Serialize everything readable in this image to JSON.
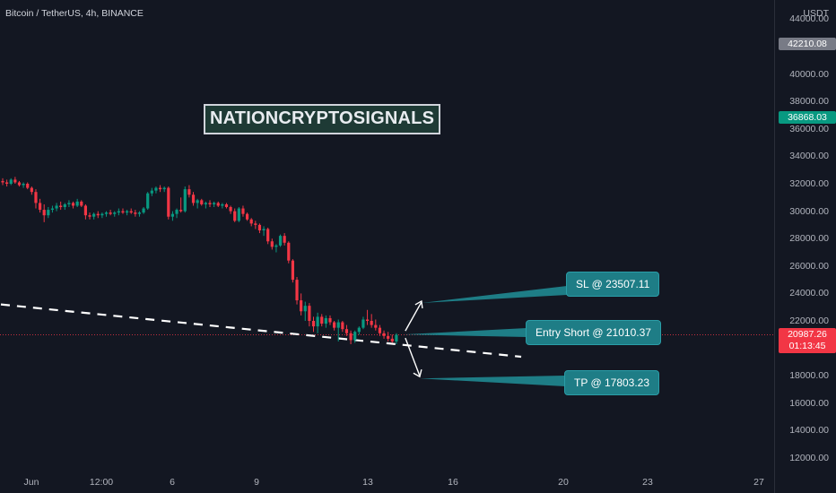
{
  "symbol_info": "Bitcoin / TetherUS, 4h, BINANCE",
  "axis_unit": "USDT",
  "watermark": "NATIONCRYPTOSIGNALS",
  "price_ticks": [
    "44000.00",
    "40000.00",
    "38000.00",
    "36000.00",
    "34000.00",
    "32000.00",
    "30000.00",
    "28000.00",
    "26000.00",
    "24000.00",
    "22000.00",
    "18000.00",
    "16000.00",
    "14000.00",
    "12000.00"
  ],
  "time_ticks": [
    "Jun",
    "12:00",
    "6",
    "9",
    "13",
    "16",
    "20",
    "23",
    "27"
  ],
  "price_tags": {
    "high": {
      "value": "42210.08",
      "color": "#787b86"
    },
    "mid": {
      "value": "36868.03",
      "color": "#089981"
    },
    "current": {
      "value": "20987.26",
      "countdown": "01:13:45",
      "color": "#f23645"
    }
  },
  "callouts": {
    "sl": "SL @ 23507.11",
    "entry": "Entry Short @ 21010.37",
    "tp": "TP @ 17803.23"
  },
  "colors": {
    "up": "#089981",
    "down": "#f23645",
    "callout": "#1e7d86"
  },
  "chart_data": {
    "type": "candlestick",
    "ylim": [
      11000,
      45000
    ],
    "candles": [
      [
        32200,
        32400,
        31900,
        32100
      ],
      [
        32100,
        32300,
        31800,
        32000
      ],
      [
        32000,
        32400,
        31900,
        32300
      ],
      [
        32300,
        32500,
        32000,
        32100
      ],
      [
        32100,
        32200,
        31800,
        31900
      ],
      [
        31900,
        32100,
        31700,
        32000
      ],
      [
        32000,
        32100,
        31600,
        31700
      ],
      [
        31700,
        31800,
        31200,
        31400
      ],
      [
        31400,
        31600,
        30200,
        30600
      ],
      [
        30600,
        30900,
        29900,
        30100
      ],
      [
        30100,
        30500,
        29200,
        29700
      ],
      [
        29700,
        30300,
        29500,
        30100
      ],
      [
        30100,
        30400,
        29900,
        30200
      ],
      [
        30200,
        30600,
        30000,
        30400
      ],
      [
        30400,
        30700,
        30100,
        30300
      ],
      [
        30300,
        30600,
        30100,
        30500
      ],
      [
        30500,
        30800,
        30300,
        30600
      ],
      [
        30600,
        30700,
        30200,
        30400
      ],
      [
        30400,
        30900,
        30300,
        30700
      ],
      [
        30700,
        30800,
        30300,
        30400
      ],
      [
        30400,
        30500,
        29400,
        29700
      ],
      [
        29700,
        29900,
        29400,
        29600
      ],
      [
        29600,
        29900,
        29400,
        29800
      ],
      [
        29800,
        30000,
        29500,
        29700
      ],
      [
        29700,
        29900,
        29500,
        29800
      ],
      [
        29800,
        30000,
        29600,
        29900
      ],
      [
        29900,
        30100,
        29700,
        29800
      ],
      [
        29800,
        30000,
        29600,
        29900
      ],
      [
        29900,
        30200,
        29700,
        30000
      ],
      [
        30000,
        30200,
        29800,
        29900
      ],
      [
        29900,
        30100,
        29700,
        30000
      ],
      [
        30000,
        30200,
        29800,
        29900
      ],
      [
        29900,
        30100,
        29600,
        29800
      ],
      [
        29800,
        30000,
        29600,
        29900
      ],
      [
        29900,
        30300,
        29800,
        30200
      ],
      [
        30200,
        31400,
        30100,
        31300
      ],
      [
        31300,
        31700,
        31100,
        31500
      ],
      [
        31500,
        31800,
        31300,
        31700
      ],
      [
        31700,
        31900,
        31400,
        31600
      ],
      [
        31600,
        31800,
        31400,
        31700
      ],
      [
        31700,
        31800,
        29400,
        29600
      ],
      [
        29600,
        30000,
        29300,
        29800
      ],
      [
        29800,
        30200,
        29500,
        30100
      ],
      [
        30100,
        31000,
        29900,
        30000
      ],
      [
        30000,
        31800,
        29900,
        31600
      ],
      [
        31600,
        31900,
        31000,
        31200
      ],
      [
        31200,
        31400,
        30400,
        30600
      ],
      [
        30600,
        30900,
        30200,
        30800
      ],
      [
        30800,
        30900,
        30400,
        30500
      ],
      [
        30500,
        30700,
        30200,
        30600
      ],
      [
        30600,
        30800,
        30300,
        30500
      ],
      [
        30500,
        30700,
        30300,
        30600
      ],
      [
        30600,
        30700,
        30300,
        30400
      ],
      [
        30400,
        30600,
        30200,
        30500
      ],
      [
        30500,
        30600,
        30200,
        30300
      ],
      [
        30300,
        30400,
        29800,
        30000
      ],
      [
        30000,
        30200,
        29200,
        29300
      ],
      [
        29300,
        30300,
        29200,
        30200
      ],
      [
        30200,
        30400,
        29600,
        29800
      ],
      [
        29800,
        29900,
        29300,
        29400
      ],
      [
        29400,
        29500,
        28900,
        29100
      ],
      [
        29100,
        29300,
        28700,
        29000
      ],
      [
        29000,
        29100,
        28400,
        28600
      ],
      [
        28600,
        28900,
        28200,
        28700
      ],
      [
        28700,
        28800,
        27600,
        27800
      ],
      [
        27800,
        28000,
        27200,
        27400
      ],
      [
        27400,
        27600,
        27000,
        27500
      ],
      [
        27500,
        28300,
        27400,
        28200
      ],
      [
        28200,
        28400,
        27500,
        27700
      ],
      [
        27700,
        27800,
        26200,
        26400
      ],
      [
        26400,
        26500,
        24800,
        25000
      ],
      [
        25000,
        25200,
        23200,
        23500
      ],
      [
        23500,
        24000,
        22400,
        22700
      ],
      [
        22700,
        23400,
        22000,
        23100
      ],
      [
        23100,
        23300,
        21600,
        22000
      ],
      [
        22000,
        22300,
        21200,
        21600
      ],
      [
        21600,
        22600,
        21100,
        22300
      ],
      [
        22300,
        22500,
        21600,
        21800
      ],
      [
        21800,
        22400,
        21500,
        22200
      ],
      [
        22200,
        22400,
        21700,
        21900
      ],
      [
        21900,
        22000,
        21300,
        21500
      ],
      [
        21500,
        22100,
        20500,
        21900
      ],
      [
        21900,
        22000,
        21200,
        21400
      ],
      [
        21400,
        21700,
        20900,
        21100
      ],
      [
        21100,
        21300,
        20300,
        20600
      ],
      [
        20600,
        21300,
        20400,
        21200
      ],
      [
        21200,
        21600,
        21000,
        21500
      ],
      [
        21500,
        22300,
        21400,
        22100
      ],
      [
        22100,
        22800,
        21700,
        22000
      ],
      [
        22000,
        22500,
        21500,
        21700
      ],
      [
        21700,
        22100,
        21300,
        21500
      ],
      [
        21500,
        21700,
        20900,
        21100
      ],
      [
        21100,
        21300,
        20700,
        20900
      ],
      [
        20900,
        21200,
        20500,
        20700
      ],
      [
        20700,
        21000,
        20400,
        20500
      ],
      [
        20500,
        21100,
        20300,
        20987
      ]
    ],
    "trendline": {
      "start": [
        0,
        23200
      ],
      "end": [
        113,
        20300
      ]
    },
    "sl": 23507.11,
    "entry": 21010.37,
    "tp": 17803.23,
    "last_price": 20987.26
  }
}
